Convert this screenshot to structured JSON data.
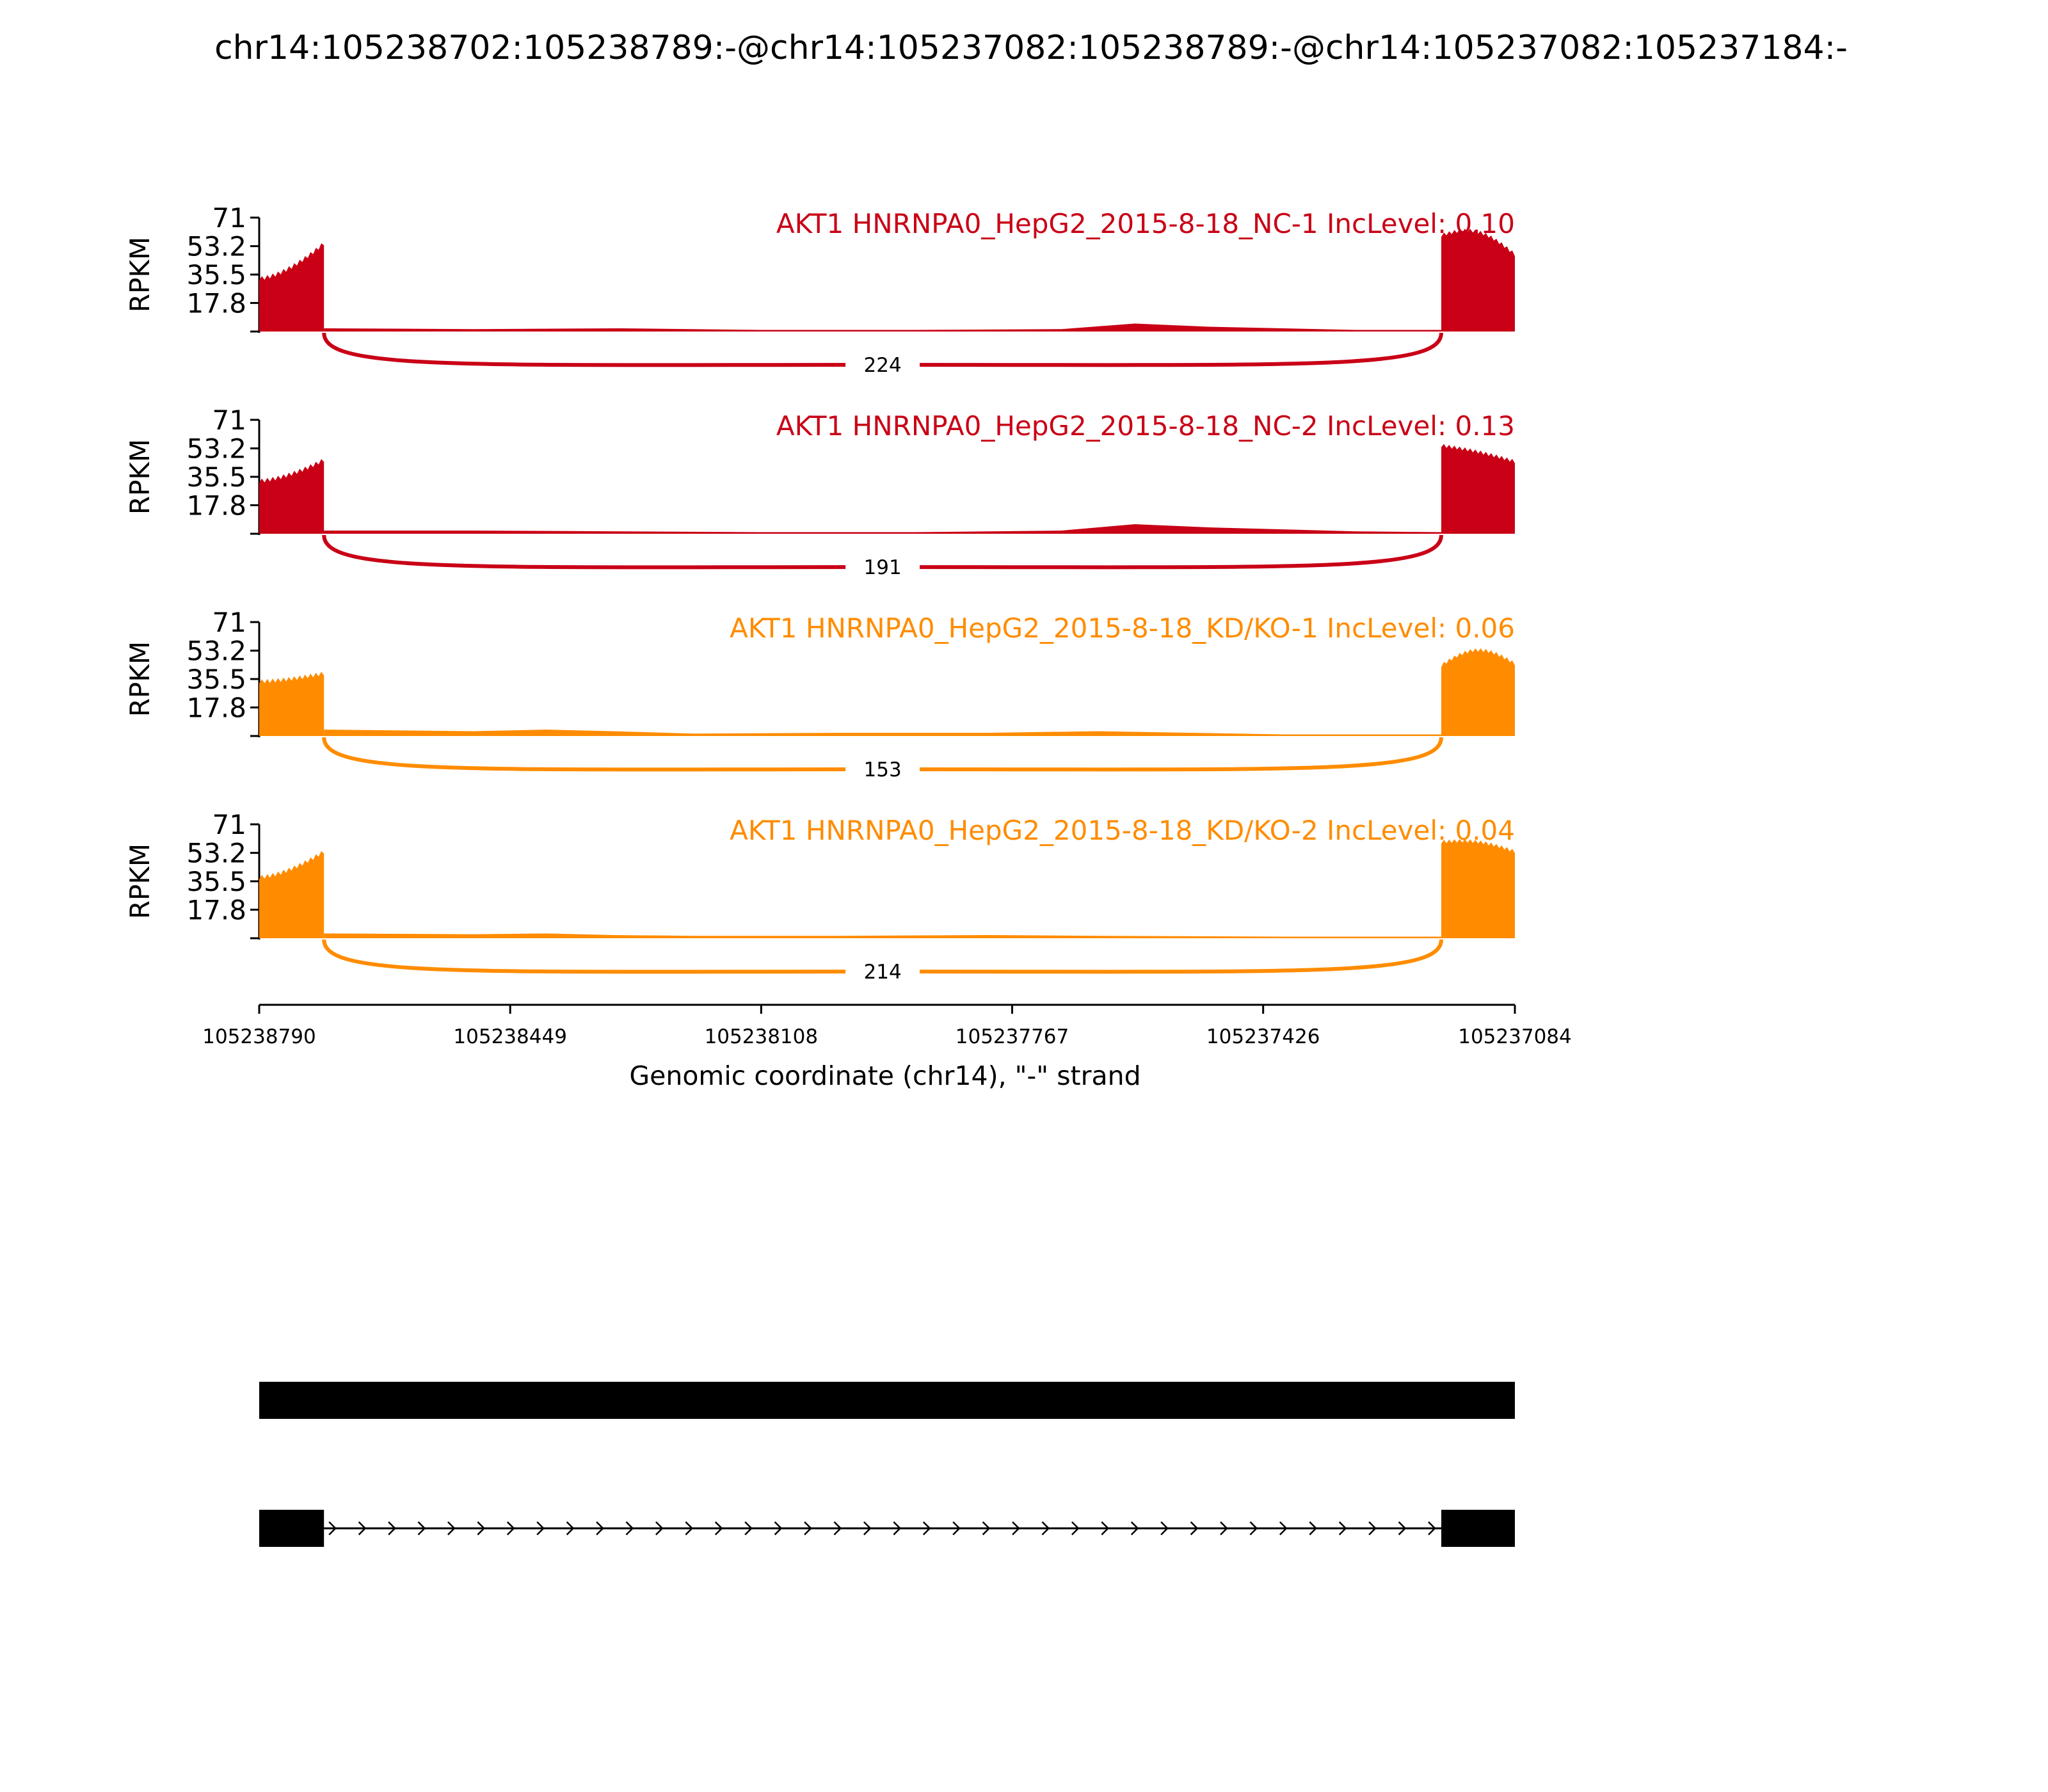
{
  "title": "chr14:105238702:105238789:-@chr14:105237082:105238789:-@chr14:105237082:105237184:-",
  "colors": {
    "nc": "#c90016",
    "kd": "#ff8c00",
    "axis": "#000000"
  },
  "chart_data": {
    "type": "area",
    "ylabel": "RPKM",
    "ylim": [
      0,
      71
    ],
    "yticks": [
      "71",
      "53.2",
      "35.5",
      "17.8"
    ],
    "ytick_values": [
      71,
      53.2,
      35.5,
      17.8
    ],
    "xlim": [
      105238790,
      105237084
    ],
    "xticks": [
      "105238790",
      "105238449",
      "105238108",
      "105237767",
      "105237426",
      "105237084"
    ],
    "xtick_values": [
      105238790,
      105238449,
      105238108,
      105237767,
      105237426,
      105237084
    ],
    "xlabel": "Genomic coordinate (chr14), \"-\" strand",
    "series": [
      {
        "name": "AKT1 HNRNPA0_HepG2_2015-8-18_NC-1 IncLevel: 0.10",
        "color_key": "nc",
        "junction_reads": "224",
        "exon_start": {
          "x": [
            105238790,
            105238702
          ],
          "y": [
            33,
            55
          ]
        },
        "exon_end": {
          "x": [
            105237184,
            105237084
          ],
          "y": [
            60,
            48
          ],
          "peak": 68
        },
        "intron_coverage": [
          {
            "x": 105238702,
            "y": 2
          },
          {
            "x": 105238500,
            "y": 1.5
          },
          {
            "x": 105238300,
            "y": 2
          },
          {
            "x": 105238110,
            "y": 1
          },
          {
            "x": 105237900,
            "y": 1
          },
          {
            "x": 105237700,
            "y": 1.5
          },
          {
            "x": 105237600,
            "y": 5
          },
          {
            "x": 105237500,
            "y": 3
          },
          {
            "x": 105237300,
            "y": 1
          },
          {
            "x": 105237184,
            "y": 1
          }
        ]
      },
      {
        "name": "AKT1 HNRNPA0_HepG2_2015-8-18_NC-2 IncLevel: 0.13",
        "color_key": "nc",
        "junction_reads": "191",
        "exon_start": {
          "x": [
            105238790,
            105238702
          ],
          "y": [
            33,
            46
          ]
        },
        "exon_end": {
          "x": [
            105237184,
            105237084
          ],
          "y": [
            55,
            45
          ],
          "peak": 56
        },
        "intron_coverage": [
          {
            "x": 105238702,
            "y": 2
          },
          {
            "x": 105238500,
            "y": 2
          },
          {
            "x": 105238300,
            "y": 1.5
          },
          {
            "x": 105238110,
            "y": 1
          },
          {
            "x": 105237900,
            "y": 1
          },
          {
            "x": 105237700,
            "y": 2
          },
          {
            "x": 105237600,
            "y": 6
          },
          {
            "x": 105237500,
            "y": 4
          },
          {
            "x": 105237300,
            "y": 1.5
          },
          {
            "x": 105237184,
            "y": 1
          }
        ]
      },
      {
        "name": "AKT1 HNRNPA0_HepG2_2015-8-18_KD/KO-1 IncLevel: 0.06",
        "color_key": "kd",
        "junction_reads": "153",
        "exon_start": {
          "x": [
            105238790,
            105238702
          ],
          "y": [
            34,
            39
          ]
        },
        "exon_end": {
          "x": [
            105237184,
            105237084
          ],
          "y": [
            44,
            45
          ],
          "peak": 54
        },
        "intron_coverage": [
          {
            "x": 105238702,
            "y": 4
          },
          {
            "x": 105238500,
            "y": 3
          },
          {
            "x": 105238400,
            "y": 4
          },
          {
            "x": 105238310,
            "y": 3
          },
          {
            "x": 105238200,
            "y": 1.5
          },
          {
            "x": 105238000,
            "y": 2
          },
          {
            "x": 105237800,
            "y": 2
          },
          {
            "x": 105237650,
            "y": 3
          },
          {
            "x": 105237400,
            "y": 1
          },
          {
            "x": 105237184,
            "y": 1
          }
        ]
      },
      {
        "name": "AKT1 HNRNPA0_HepG2_2015-8-18_KD/KO-2 IncLevel: 0.04",
        "color_key": "kd",
        "junction_reads": "214",
        "exon_start": {
          "x": [
            105238790,
            105238702
          ],
          "y": [
            38,
            54
          ]
        },
        "exon_end": {
          "x": [
            105237184,
            105237084
          ],
          "y": [
            60,
            54
          ],
          "peak": 63
        },
        "intron_coverage": [
          {
            "x": 105238702,
            "y": 3
          },
          {
            "x": 105238500,
            "y": 2.5
          },
          {
            "x": 105238400,
            "y": 3
          },
          {
            "x": 105238310,
            "y": 2
          },
          {
            "x": 105238200,
            "y": 1.5
          },
          {
            "x": 105238000,
            "y": 1.5
          },
          {
            "x": 105237800,
            "y": 2
          },
          {
            "x": 105237650,
            "y": 1.5
          },
          {
            "x": 105237400,
            "y": 1
          },
          {
            "x": 105237184,
            "y": 1
          }
        ]
      }
    ],
    "isoforms": [
      {
        "exons": [
          [
            105238790,
            105237084
          ]
        ]
      },
      {
        "exons": [
          [
            105238790,
            105238702
          ],
          [
            105237184,
            105237084
          ]
        ],
        "intron_arrows": 38
      }
    ]
  }
}
